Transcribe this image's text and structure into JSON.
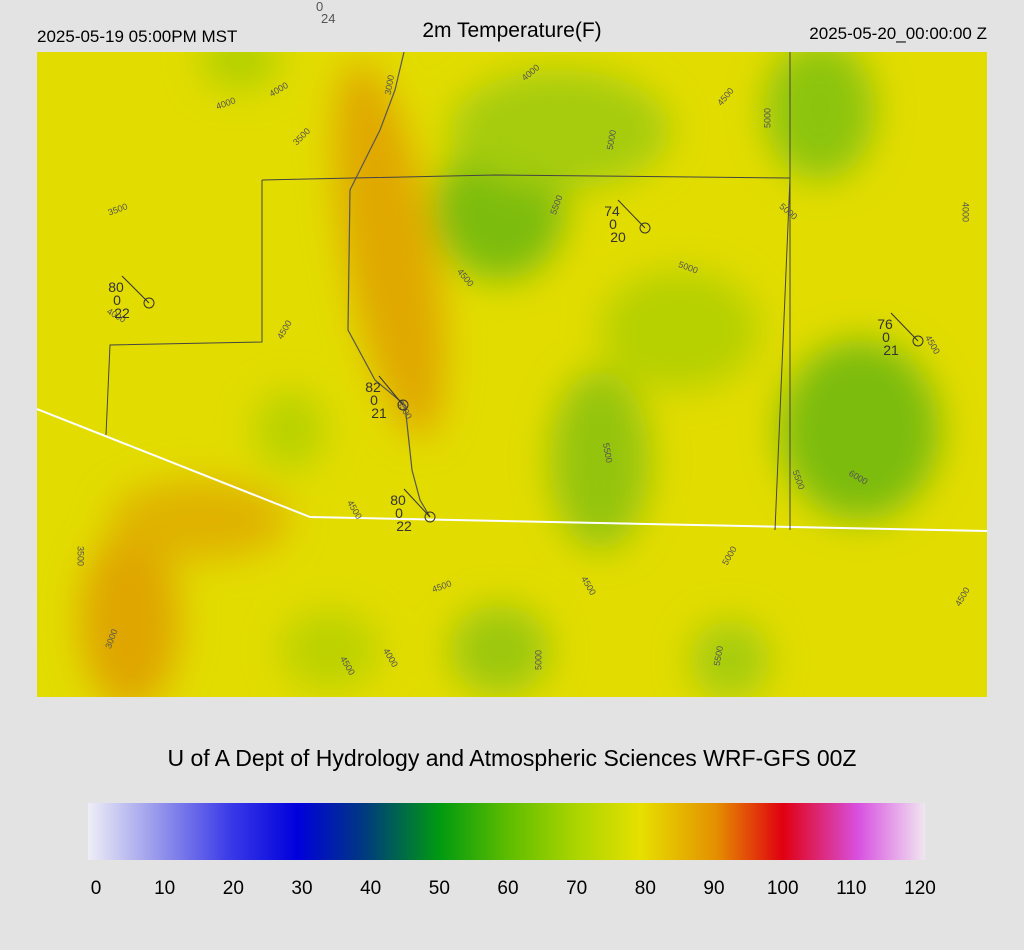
{
  "header": {
    "left": "2025-05-19 05:00PM MST",
    "title": "2m Temperature(F)",
    "right": "2025-05-20_00:00:00 Z"
  },
  "stray_station": {
    "top": "0",
    "bottom": "24"
  },
  "stations": [
    {
      "temp": "80",
      "mid": "0",
      "dew": "22"
    },
    {
      "temp": "74",
      "mid": "0",
      "dew": "20"
    },
    {
      "temp": "76",
      "mid": "0",
      "dew": "21"
    },
    {
      "temp": "82",
      "mid": "0",
      "dew": "21"
    },
    {
      "temp": "80",
      "mid": "0",
      "dew": "22"
    }
  ],
  "contour_labels": [
    "4000",
    "4000",
    "3000",
    "3500",
    "4000",
    "4500",
    "5000",
    "3500",
    "5000",
    "5500",
    "5000",
    "4000",
    "5000",
    "4500",
    "4000",
    "4500",
    "4500",
    "3500",
    "5500",
    "5500",
    "6000",
    "4500",
    "5000",
    "3500",
    "4500",
    "4500",
    "4500",
    "3000",
    "4000",
    "4500",
    "5000",
    "5500"
  ],
  "credit": "U of A Dept of Hydrology and Atmospheric Sciences WRF-GFS 00Z",
  "colorbar": {
    "ticks": [
      0,
      10,
      20,
      30,
      40,
      50,
      60,
      70,
      80,
      90,
      100,
      110,
      120
    ]
  }
}
